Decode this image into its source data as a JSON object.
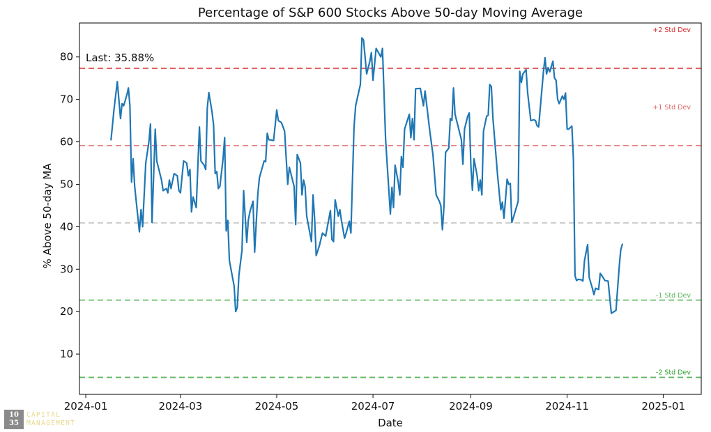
{
  "chart_data": {
    "type": "line",
    "title": "Percentage of S&P 600 Stocks Above 50-day Moving Average",
    "xlabel": "Date",
    "ylabel": "% Above 50-day MA",
    "ylim": [
      0.5,
      88
    ],
    "y_ticks": [
      10,
      20,
      30,
      40,
      50,
      60,
      70,
      80
    ],
    "x_range_days": [
      -4,
      390
    ],
    "x_ticks": [
      {
        "label": "2024-01",
        "day": 0
      },
      {
        "label": "2024-03",
        "day": 60
      },
      {
        "label": "2024-05",
        "day": 121
      },
      {
        "label": "2024-07",
        "day": 182
      },
      {
        "label": "2024-09",
        "day": 244
      },
      {
        "label": "2024-11",
        "day": 305
      },
      {
        "label": "2025-01",
        "day": 366
      }
    ],
    "annotation": "Last: 35.88%",
    "reference_lines": [
      {
        "name": "+2 Std Dev",
        "value": 77.3,
        "color": "#d62728",
        "label": "+2 Std Dev"
      },
      {
        "name": "+1 Std Dev",
        "value": 59.1,
        "color": "#e06666",
        "label": "+1 Std Dev"
      },
      {
        "name": "Mean",
        "value": 40.9,
        "color": "#bbbbbb",
        "label": ""
      },
      {
        "name": "-1 Std Dev",
        "value": 22.7,
        "color": "#5cb85c",
        "label": "-1 Std Dev"
      },
      {
        "name": "-2 Std Dev",
        "value": 4.5,
        "color": "#2ca02c",
        "label": "-2 Std Dev"
      }
    ],
    "series": [
      {
        "name": "% Above 50-day MA",
        "color": "#1f77b4",
        "points": [
          [
            16,
            60.5
          ],
          [
            18,
            68
          ],
          [
            20,
            74.2
          ],
          [
            22,
            65.5
          ],
          [
            23,
            69
          ],
          [
            24,
            68.5
          ],
          [
            26,
            71
          ],
          [
            27,
            72.7
          ],
          [
            28,
            68.5
          ],
          [
            29,
            50.5
          ],
          [
            30,
            56
          ],
          [
            31,
            49.5
          ],
          [
            34,
            38.8
          ],
          [
            35,
            44
          ],
          [
            36,
            40
          ],
          [
            38,
            55
          ],
          [
            40,
            60
          ],
          [
            41,
            64.2
          ],
          [
            42,
            41
          ],
          [
            44,
            63
          ],
          [
            45,
            55.5
          ],
          [
            48,
            51
          ],
          [
            49,
            48.5
          ],
          [
            51,
            49
          ],
          [
            52,
            48
          ],
          [
            53,
            51
          ],
          [
            54,
            49
          ],
          [
            56,
            52.5
          ],
          [
            58,
            52
          ],
          [
            59,
            48.5
          ],
          [
            60,
            48
          ],
          [
            62,
            55.5
          ],
          [
            64,
            55
          ],
          [
            65,
            52
          ],
          [
            66,
            53.5
          ],
          [
            67,
            43.5
          ],
          [
            68,
            47
          ],
          [
            70,
            44.5
          ],
          [
            72,
            63.5
          ],
          [
            73,
            55.5
          ],
          [
            75,
            54.5
          ],
          [
            76,
            53.5
          ],
          [
            77,
            68
          ],
          [
            78,
            71.6
          ],
          [
            80,
            67
          ],
          [
            81,
            64
          ],
          [
            82,
            52.5
          ],
          [
            83,
            53
          ],
          [
            84,
            49
          ],
          [
            85,
            49.5
          ],
          [
            87,
            56
          ],
          [
            88,
            61
          ],
          [
            89,
            39
          ],
          [
            90,
            41.5
          ],
          [
            91,
            32
          ],
          [
            94,
            26
          ],
          [
            95,
            20
          ],
          [
            96,
            21
          ],
          [
            97,
            28.5
          ],
          [
            99,
            34.5
          ],
          [
            100,
            48.5
          ],
          [
            102,
            36.3
          ],
          [
            103,
            41.5
          ],
          [
            104,
            43.5
          ],
          [
            106,
            46
          ],
          [
            107,
            34
          ],
          [
            109,
            47.5
          ],
          [
            110,
            51.5
          ],
          [
            113,
            55.5
          ],
          [
            114,
            55.3
          ],
          [
            115,
            62
          ],
          [
            116,
            60.5
          ],
          [
            119,
            60.3
          ],
          [
            121,
            67.5
          ],
          [
            122,
            65
          ],
          [
            124,
            64.5
          ],
          [
            126,
            62.5
          ],
          [
            128,
            50
          ],
          [
            129,
            54
          ],
          [
            132,
            49.5
          ],
          [
            133,
            40.5
          ],
          [
            134,
            57
          ],
          [
            136,
            55
          ],
          [
            137,
            47.5
          ],
          [
            138,
            51
          ],
          [
            139,
            49.5
          ],
          [
            140,
            42.5
          ],
          [
            143,
            36.5
          ],
          [
            144,
            47.5
          ],
          [
            145,
            42
          ],
          [
            146,
            33.2
          ],
          [
            148,
            35.5
          ],
          [
            150,
            38.5
          ],
          [
            152,
            37.8
          ],
          [
            155,
            43.8
          ],
          [
            156,
            37
          ],
          [
            157,
            36.5
          ],
          [
            158,
            46.3
          ],
          [
            159,
            44.5
          ],
          [
            160,
            42.5
          ],
          [
            161,
            44
          ],
          [
            162,
            41.5
          ],
          [
            164,
            37.3
          ],
          [
            165,
            38.5
          ],
          [
            167,
            41.3
          ],
          [
            168,
            38.5
          ],
          [
            170,
            63.5
          ],
          [
            171,
            68.5
          ],
          [
            174,
            73.5
          ],
          [
            175,
            84.5
          ],
          [
            176,
            84
          ],
          [
            178,
            76
          ],
          [
            180,
            79
          ],
          [
            181,
            81
          ],
          [
            182,
            74.5
          ],
          [
            184,
            82
          ],
          [
            187,
            80
          ],
          [
            188,
            82
          ],
          [
            190,
            60.5
          ],
          [
            193,
            43
          ],
          [
            194,
            49.3
          ],
          [
            195,
            44.5
          ],
          [
            196,
            54.5
          ],
          [
            198,
            50.5
          ],
          [
            199,
            47.5
          ],
          [
            200,
            56.5
          ],
          [
            201,
            54
          ],
          [
            202,
            63
          ],
          [
            205,
            66.5
          ],
          [
            206,
            61
          ],
          [
            207,
            65.5
          ],
          [
            208,
            60.5
          ],
          [
            209,
            72.5
          ],
          [
            212,
            72.6
          ],
          [
            214,
            68.5
          ],
          [
            215,
            72
          ],
          [
            218,
            62.5
          ],
          [
            220,
            57
          ],
          [
            222,
            47.5
          ],
          [
            224,
            46
          ],
          [
            225,
            45
          ],
          [
            226,
            39.3
          ],
          [
            227,
            45
          ],
          [
            228,
            57.5
          ],
          [
            229,
            58
          ],
          [
            230,
            58.5
          ],
          [
            231,
            65.5
          ],
          [
            232,
            65
          ],
          [
            233,
            72.7
          ],
          [
            234,
            66.5
          ],
          [
            236,
            63.5
          ],
          [
            237,
            62
          ],
          [
            238,
            60.5
          ],
          [
            239,
            54.7
          ],
          [
            240,
            63
          ],
          [
            242,
            66
          ],
          [
            243,
            66.8
          ],
          [
            244,
            54.5
          ],
          [
            245,
            48.6
          ],
          [
            246,
            56
          ],
          [
            248,
            52
          ],
          [
            249,
            48.5
          ],
          [
            250,
            51
          ],
          [
            251,
            47.5
          ],
          [
            252,
            62.5
          ],
          [
            254,
            66
          ],
          [
            255,
            66.3
          ],
          [
            256,
            73.5
          ],
          [
            257,
            73
          ],
          [
            258,
            65.5
          ],
          [
            261,
            52
          ],
          [
            263,
            44
          ],
          [
            264,
            45.8
          ],
          [
            265,
            42
          ],
          [
            267,
            51.2
          ],
          [
            268,
            50
          ],
          [
            269,
            50.2
          ],
          [
            270,
            41
          ],
          [
            272,
            43.5
          ],
          [
            274,
            46
          ],
          [
            275,
            76.6
          ],
          [
            276,
            74
          ],
          [
            277,
            76
          ],
          [
            279,
            77
          ],
          [
            280,
            71.5
          ],
          [
            282,
            65
          ],
          [
            284,
            65.2
          ],
          [
            285,
            65
          ],
          [
            286,
            63.8
          ],
          [
            287,
            63.5
          ],
          [
            288,
            68
          ],
          [
            290,
            76.5
          ],
          [
            291,
            79.8
          ],
          [
            292,
            76
          ],
          [
            293,
            77.5
          ],
          [
            294,
            76.5
          ],
          [
            296,
            79
          ],
          [
            297,
            75
          ],
          [
            298,
            74.5
          ],
          [
            299,
            70
          ],
          [
            300,
            69
          ],
          [
            302,
            70.8
          ],
          [
            303,
            70
          ],
          [
            304,
            71.5
          ],
          [
            305,
            63
          ],
          [
            306,
            63
          ],
          [
            308,
            63.7
          ],
          [
            309,
            56
          ],
          [
            310,
            28.5
          ],
          [
            311,
            27.3
          ],
          [
            312,
            27.6
          ],
          [
            314,
            27.5
          ],
          [
            315,
            27.2
          ],
          [
            316,
            32
          ],
          [
            318,
            35.8
          ],
          [
            319,
            28
          ],
          [
            321,
            25.5
          ],
          [
            322,
            24
          ],
          [
            323,
            25.5
          ],
          [
            325,
            25.2
          ],
          [
            326,
            29
          ],
          [
            327,
            28.5
          ],
          [
            329,
            27.3
          ],
          [
            331,
            27.2
          ],
          [
            333,
            19.6
          ],
          [
            336,
            20.3
          ],
          [
            338,
            30.5
          ],
          [
            339,
            34.5
          ],
          [
            340,
            35.88
          ]
        ]
      }
    ]
  },
  "logo": {
    "top_number": "10",
    "bottom_number": "35",
    "line1": "CAPITAL",
    "line2": "MANAGEMENT"
  }
}
